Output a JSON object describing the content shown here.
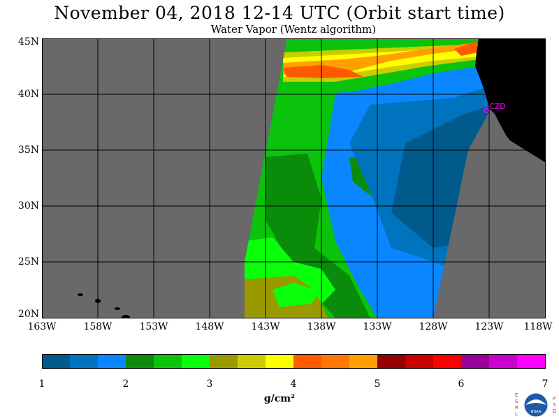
{
  "header": {
    "title": "November 04, 2018  12-14 UTC  (Orbit start time)",
    "subtitle": "Water Vapor (Wentz algorithm)"
  },
  "map": {
    "lat_labels": [
      "45N",
      "40N",
      "35N",
      "30N",
      "25N",
      "20N"
    ],
    "lon_labels": [
      "163W",
      "158W",
      "153W",
      "148W",
      "143W",
      "138W",
      "133W",
      "128W",
      "123W",
      "118W"
    ],
    "station_label": "CZD",
    "colors": {
      "no_data": "#696969",
      "land": "#000000",
      "grid": "#000000",
      "station": "#ff00ff"
    }
  },
  "colorbar": {
    "tick_labels": [
      "1",
      "2",
      "3",
      "4",
      "5",
      "6",
      "7"
    ],
    "unit_label": "g/cm²",
    "colors": [
      "#005a8c",
      "#0073be",
      "#0a87ff",
      "#0a8c0a",
      "#0ac30a",
      "#0aff0a",
      "#999900",
      "#cccc00",
      "#ffff00",
      "#ff5a00",
      "#ff7800",
      "#ffa000",
      "#960000",
      "#c80000",
      "#ff0000",
      "#990099",
      "#cc00cc",
      "#ff00ff"
    ]
  },
  "logo": {
    "left_letters": "ESRL",
    "right_letters": "PSD",
    "center_text": "NOAA"
  }
}
